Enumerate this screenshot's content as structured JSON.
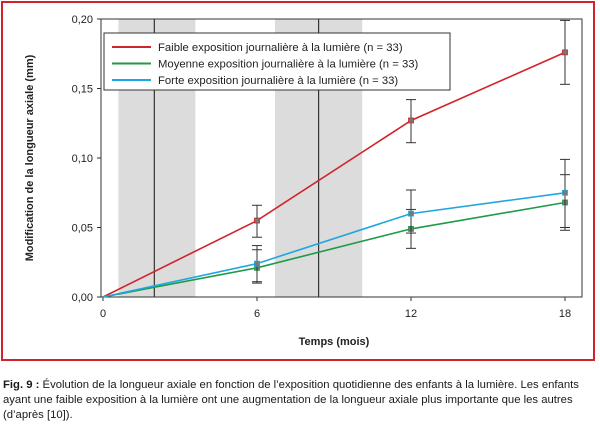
{
  "chart_data": {
    "type": "line",
    "x": [
      0,
      6,
      12,
      18
    ],
    "xlabel": "Temps (mois)",
    "ylabel": "Modification de la longueur axiale (mm)",
    "xlim": [
      0,
      18.5
    ],
    "ylim": [
      0,
      0.2
    ],
    "xticks": [
      "0",
      "6",
      "12",
      "18"
    ],
    "yticks": [
      "0,00",
      "0,05",
      "0,10",
      "0,15",
      "0,20"
    ],
    "legend_position": "top-left",
    "grid": false,
    "shaded_bands": [
      {
        "x_start": 0.6,
        "x_end": 3.6,
        "divider": 2.0
      },
      {
        "x_start": 6.7,
        "x_end": 10.1,
        "divider": 8.4
      }
    ],
    "series": [
      {
        "name": "Faible exposition journalière à la lumière (n = 33)",
        "color": "#d2232a",
        "values": [
          0,
          0.055,
          0.127,
          0.176
        ],
        "err_low": [
          0,
          0.043,
          0.111,
          0.153
        ],
        "err_high": [
          0,
          0.066,
          0.142,
          0.199
        ]
      },
      {
        "name": "Moyenne exposition journalière à la lumière (n = 33)",
        "color": "#1f9a48",
        "values": [
          0,
          0.021,
          0.049,
          0.068
        ],
        "err_low": [
          0,
          0.01,
          0.035,
          0.048
        ],
        "err_high": [
          0,
          0.034,
          0.063,
          0.088
        ]
      },
      {
        "name": "Forte exposition journalière à la lumière (n = 33)",
        "color": "#1ea6e0",
        "values": [
          0,
          0.024,
          0.06,
          0.075
        ],
        "err_low": [
          0,
          0.011,
          0.046,
          0.05
        ],
        "err_high": [
          0,
          0.037,
          0.077,
          0.099
        ]
      }
    ]
  },
  "caption": {
    "label": "Fig. 9 :",
    "text": " Évolution de la longueur axiale en fonction de l’exposition quotidienne des enfants à la lumière. Les enfants ayant une faible exposition à la lumière ont une augmentation de la longueur axiale plus importante que les autres (d’après [10])."
  }
}
